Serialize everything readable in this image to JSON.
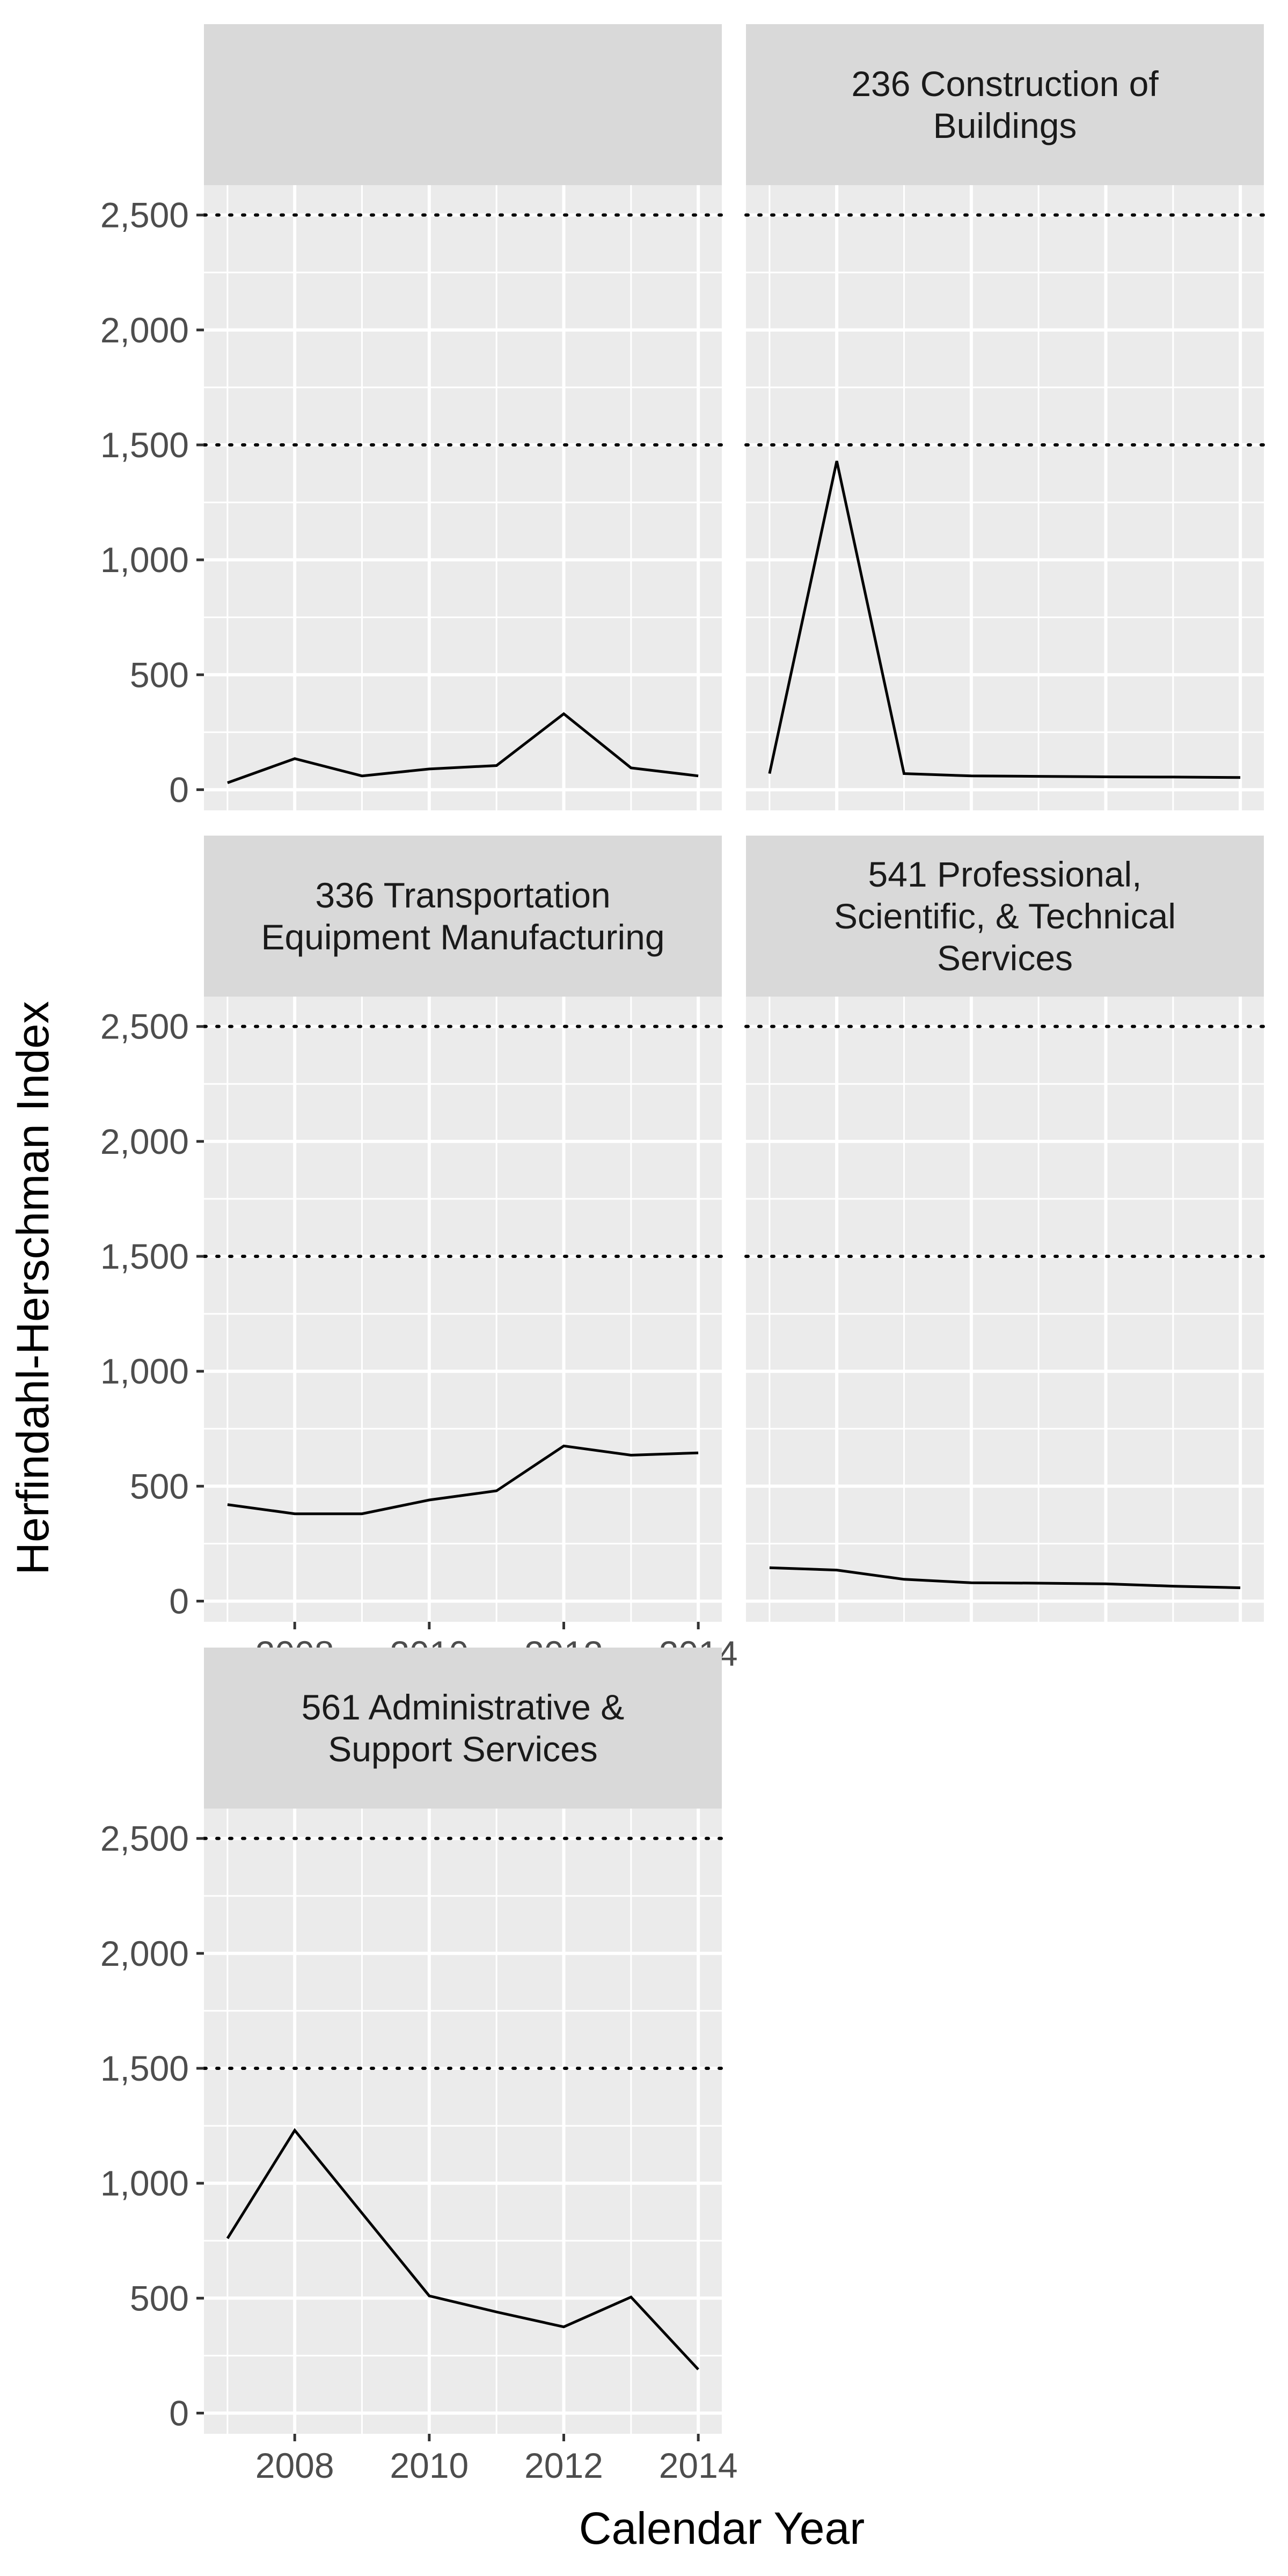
{
  "chart_data": {
    "type": "line",
    "xlabel": "Calendar Year",
    "ylabel": "Herfindahl-Herschman Index",
    "xlim": [
      2006.65,
      2014.35
    ],
    "ylim": [
      -90,
      2630
    ],
    "x_ticks": [
      2008,
      2010,
      2012,
      2014
    ],
    "x_tick_labels": [
      "2008",
      "2010",
      "2012",
      "2014"
    ],
    "y_ticks": [
      0,
      500,
      1000,
      1500,
      2000,
      2500
    ],
    "y_tick_labels": [
      "0",
      "500",
      "1,000",
      "1,500",
      "2,000",
      "2,500"
    ],
    "reference_lines": [
      1500,
      2500
    ],
    "facets": [
      {
        "title_lines": [],
        "x": [
          2007,
          2008,
          2009,
          2010,
          2011,
          2012,
          2013,
          2014
        ],
        "values": [
          30,
          135,
          60,
          90,
          105,
          330,
          95,
          60
        ]
      },
      {
        "title_lines": [
          "236 Construction of",
          "Buildings"
        ],
        "x": [
          2007,
          2008,
          2009,
          2010,
          2011,
          2012,
          2013,
          2014
        ],
        "values": [
          70,
          1430,
          70,
          60,
          58,
          56,
          55,
          53
        ]
      },
      {
        "title_lines": [
          "336 Transportation",
          "Equipment Manufacturing"
        ],
        "x": [
          2007,
          2008,
          2009,
          2010,
          2011,
          2012,
          2013,
          2014
        ],
        "values": [
          420,
          380,
          380,
          440,
          480,
          675,
          635,
          645
        ]
      },
      {
        "title_lines": [
          "541 Professional,",
          "Scientific, & Technical",
          "Services"
        ],
        "x": [
          2007,
          2008,
          2009,
          2010,
          2011,
          2012,
          2013,
          2014
        ],
        "values": [
          145,
          135,
          95,
          80,
          78,
          75,
          65,
          58
        ]
      },
      {
        "title_lines": [
          "561 Administrative &",
          "Support Services"
        ],
        "x": [
          2007,
          2008,
          2009,
          2010,
          2011,
          2012,
          2013,
          2014
        ],
        "values": [
          760,
          1230,
          870,
          510,
          440,
          375,
          505,
          190
        ]
      }
    ]
  }
}
